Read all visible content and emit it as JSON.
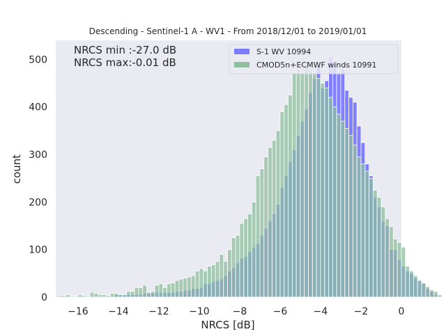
{
  "chart_data": {
    "type": "bar",
    "title": "Descending - Sentinel-1 A - WV1 - From 2018/12/01 to 2019/01/01",
    "xlabel": "NRCS [dB]",
    "ylabel": "count",
    "xlim": [
      -17.1,
      0
    ],
    "ylim": [
      0,
      540
    ],
    "xticks": [
      -16,
      -14,
      -12,
      -10,
      -8,
      -6,
      -4,
      -2,
      0
    ],
    "yticks": [
      0,
      100,
      200,
      300,
      400,
      500
    ],
    "xtick_labels": [
      "−16",
      "−14",
      "−12",
      "−10",
      "−8",
      "−6",
      "−4",
      "−2",
      "0"
    ],
    "ytick_labels": [
      "0",
      "100",
      "200",
      "300",
      "400",
      "500"
    ],
    "annotations": [
      "NRCS min :-27.0 dB",
      "NRCS max:-0.01 dB"
    ],
    "grid": false,
    "legend_position": "top-right",
    "background": "#eaeaf2",
    "bin_start": -17.0,
    "bin_width": 0.2,
    "series": [
      {
        "name": "S-1 WV 10994",
        "color": "#7b7bff",
        "values": [
          0,
          0,
          0,
          0,
          0,
          0,
          0,
          0,
          0,
          0,
          0,
          0,
          0,
          0,
          5,
          5,
          5,
          5,
          5,
          6,
          6,
          8,
          8,
          8,
          10,
          10,
          10,
          10,
          10,
          12,
          12,
          14,
          15,
          18,
          18,
          20,
          28,
          28,
          33,
          35,
          38,
          45,
          55,
          62,
          72,
          82,
          85,
          95,
          105,
          112,
          130,
          145,
          160,
          175,
          195,
          230,
          255,
          285,
          310,
          340,
          370,
          395,
          430,
          460,
          485,
          440,
          455,
          505,
          495,
          470,
          480,
          435,
          420,
          410,
          360,
          325,
          280,
          255,
          210,
          190,
          160,
          150,
          100,
          100,
          78,
          65,
          55,
          50,
          40,
          35,
          28,
          18,
          12,
          5,
          0
        ]
      },
      {
        "name": "CMOD5n+ECMWF winds 10991",
        "color": "#8fbf9f",
        "values": [
          3,
          3,
          5,
          2,
          2,
          5,
          3,
          2,
          10,
          8,
          5,
          5,
          3,
          8,
          8,
          5,
          5,
          12,
          12,
          20,
          20,
          25,
          10,
          12,
          25,
          28,
          20,
          28,
          30,
          35,
          38,
          40,
          42,
          45,
          55,
          60,
          55,
          65,
          68,
          75,
          90,
          75,
          100,
          125,
          130,
          155,
          165,
          175,
          200,
          255,
          270,
          295,
          315,
          330,
          350,
          390,
          405,
          425,
          470,
          480,
          470,
          490,
          480,
          470,
          460,
          450,
          440,
          420,
          400,
          385,
          370,
          355,
          340,
          320,
          295,
          280,
          265,
          250,
          225,
          210,
          190,
          165,
          148,
          122,
          115,
          105,
          65,
          55,
          45,
          35,
          30,
          22,
          15,
          12,
          5
        ]
      }
    ]
  }
}
